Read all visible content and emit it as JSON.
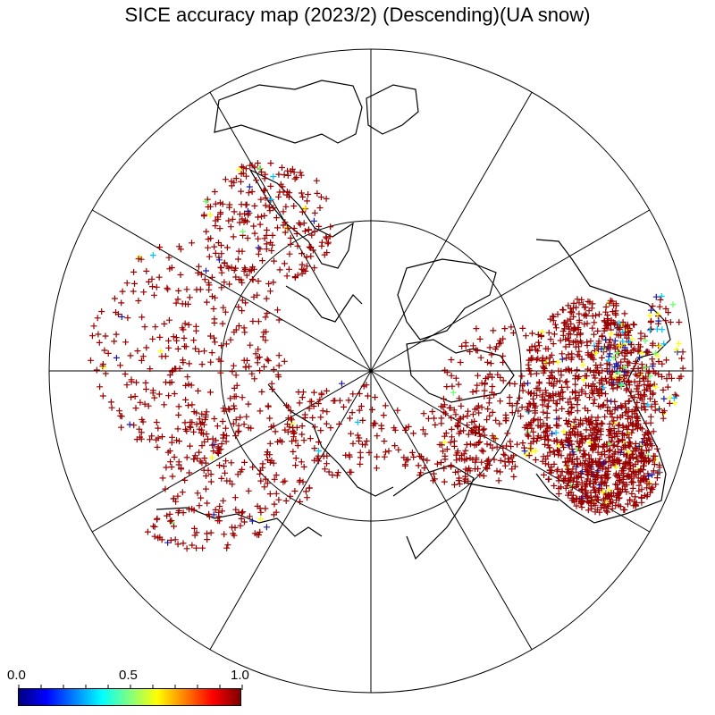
{
  "title": "SICE accuracy map (2023/2) (Descending)(UA snow)",
  "colorbar": {
    "labels": [
      "0.0",
      "0.5",
      "1.0"
    ],
    "colors": [
      "#00007f",
      "#0000ff",
      "#0080ff",
      "#00ffff",
      "#80ff80",
      "#ffff00",
      "#ff8000",
      "#ff0000",
      "#7f0000"
    ]
  },
  "marker_colors": {
    "dominant": "#990000",
    "low": "#1a1aa0",
    "mid_low": "#00c0ff",
    "mid": "#60ff60",
    "mid_high": "#ffff00"
  },
  "projection": "north-polar-stereographic",
  "graticule": {
    "meridian_step_deg": 30,
    "latitude_circles": [
      "outer",
      "middle"
    ]
  }
}
